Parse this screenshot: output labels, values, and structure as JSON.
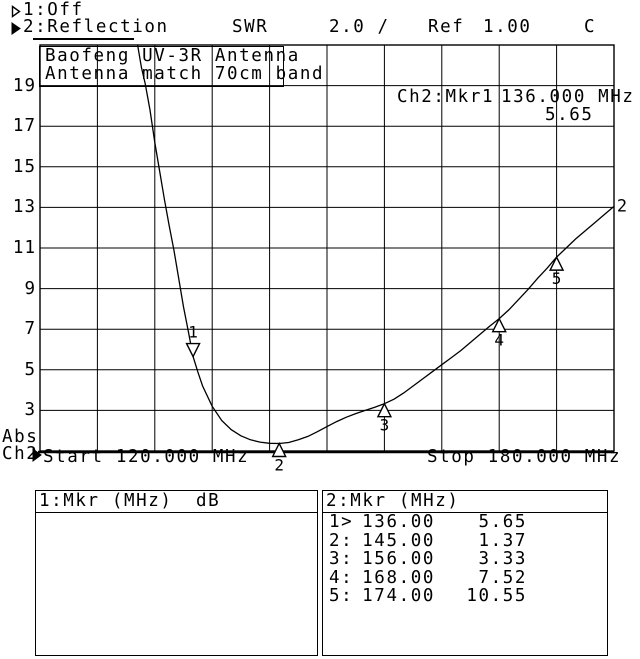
{
  "header": {
    "ch1_label": "1:Off",
    "ch2_label": "2:Reflection",
    "format_label": "SWR",
    "scale_label": "2.0 /",
    "ref_label": "Ref",
    "ref_value": "1.00",
    "cal_indicator": "C"
  },
  "chart_data": {
    "type": "line",
    "title": "Baofeng UV-3R Antenna",
    "title_lines": [
      "Baofeng UV-3R Antenna",
      "Antenna match 70cm band"
    ],
    "xlabel_start": "Start 120.000 MHz",
    "xlabel_stop": "Stop 180.000 MHz",
    "x_range_mhz": [
      120,
      180
    ],
    "ylabel": "SWR",
    "y_range": [
      1,
      21
    ],
    "y_per_div": 2.0,
    "y_axis_ticks": [
      19,
      17,
      15,
      13,
      11,
      9,
      7,
      5,
      3
    ],
    "grid": "on",
    "axis_label_line1": "Abs",
    "axis_label_line2": "Ch2",
    "trace_label": "2",
    "readout": {
      "prefix": "Ch2:Mkr1",
      "freq": "136.000 MHz",
      "value": "5.65"
    },
    "markers": [
      {
        "n": "1",
        "freq_mhz": 136,
        "swr": 5.65,
        "active": true
      },
      {
        "n": "2",
        "freq_mhz": 145,
        "swr": 1.37,
        "active": false
      },
      {
        "n": "3",
        "freq_mhz": 156,
        "swr": 3.33,
        "active": false
      },
      {
        "n": "4",
        "freq_mhz": 168,
        "swr": 7.52,
        "active": false
      },
      {
        "n": "5",
        "freq_mhz": 174,
        "swr": 10.55,
        "active": false
      }
    ],
    "samples": [
      [
        130.2,
        21
      ],
      [
        130.6,
        19.9
      ],
      [
        131,
        19.1
      ],
      [
        131.5,
        17.8
      ],
      [
        132,
        16.2
      ],
      [
        132.5,
        14.8
      ],
      [
        133,
        13.4
      ],
      [
        133.5,
        12.1
      ],
      [
        134,
        10.9
      ],
      [
        134.5,
        9.5
      ],
      [
        135,
        8.1
      ],
      [
        135.5,
        6.9
      ],
      [
        136,
        5.65
      ],
      [
        136.5,
        4.9
      ],
      [
        137,
        4.2
      ],
      [
        138,
        3.2
      ],
      [
        139,
        2.5
      ],
      [
        140,
        2.05
      ],
      [
        141,
        1.75
      ],
      [
        142,
        1.55
      ],
      [
        143,
        1.44
      ],
      [
        144,
        1.38
      ],
      [
        145,
        1.37
      ],
      [
        146,
        1.42
      ],
      [
        147,
        1.55
      ],
      [
        148,
        1.72
      ],
      [
        149,
        1.95
      ],
      [
        150,
        2.2
      ],
      [
        151,
        2.45
      ],
      [
        152,
        2.66
      ],
      [
        153,
        2.84
      ],
      [
        154,
        3.0
      ],
      [
        155,
        3.16
      ],
      [
        156,
        3.33
      ],
      [
        157,
        3.55
      ],
      [
        158,
        3.85
      ],
      [
        159,
        4.2
      ],
      [
        160,
        4.55
      ],
      [
        161,
        4.9
      ],
      [
        162,
        5.25
      ],
      [
        163,
        5.6
      ],
      [
        164,
        5.95
      ],
      [
        165,
        6.35
      ],
      [
        166,
        6.75
      ],
      [
        167,
        7.15
      ],
      [
        168,
        7.52
      ],
      [
        169,
        7.95
      ],
      [
        170,
        8.45
      ],
      [
        171,
        8.95
      ],
      [
        172,
        9.5
      ],
      [
        173,
        10.0
      ],
      [
        174,
        10.55
      ],
      [
        175,
        11.0
      ],
      [
        176,
        11.45
      ],
      [
        177,
        11.85
      ],
      [
        178,
        12.25
      ],
      [
        179,
        12.65
      ],
      [
        180,
        13.05
      ]
    ]
  },
  "tables": {
    "left": {
      "header": "1:Mkr (MHz)",
      "header_unit": "dB",
      "rows": []
    },
    "right": {
      "header": "2:Mkr (MHz)",
      "rows": [
        {
          "label": "1>",
          "freq": "136.00",
          "value": "5.65"
        },
        {
          "label": "2:",
          "freq": "145.00",
          "value": "1.37"
        },
        {
          "label": "3:",
          "freq": "156.00",
          "value": "3.33"
        },
        {
          "label": "4:",
          "freq": "168.00",
          "value": "7.52"
        },
        {
          "label": "5:",
          "freq": "174.00",
          "value": "10.55"
        }
      ]
    }
  }
}
